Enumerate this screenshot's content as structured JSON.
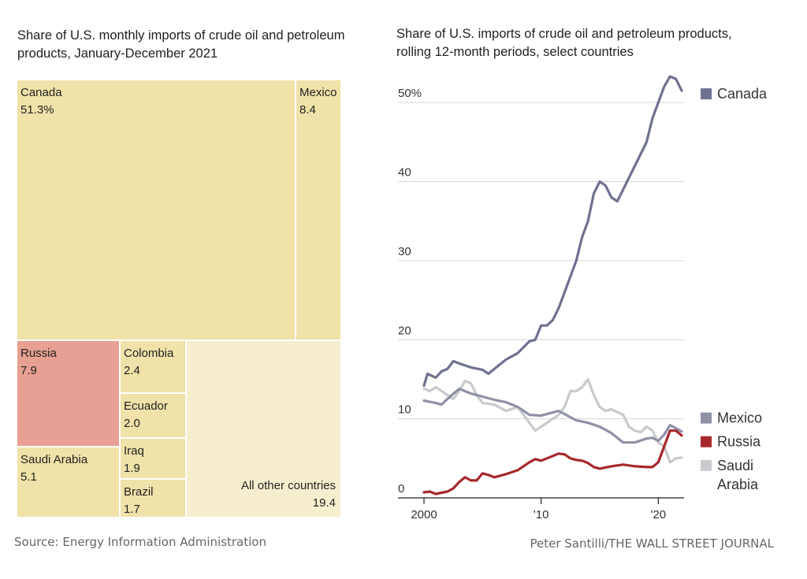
{
  "left_title": "Share of U.S. monthly imports of crude oil and petroleum products, January-December 2021",
  "right_title": "Share of U.S. imports of crude oil and petroleum products, rolling 12-month periods, select countries",
  "source": "Source: Energy Information Administration",
  "credit": "Peter Santilli/THE WALL STREET JOURNAL",
  "colors": {
    "treemap_fill": "#f0e2a9",
    "treemap_other": "#f6efcf",
    "russia_fill": "#e7a092",
    "canada_line": "#6f7190",
    "mexico_line": "#8f91a6",
    "russia_line": "#a6282b",
    "saudi_line": "#c9cace",
    "grid": "#d6d6d6"
  },
  "chart_data": [
    {
      "type": "treemap",
      "title": "Share of U.S. monthly imports of crude oil and petroleum products, January-December 2021",
      "items": [
        {
          "name": "Canada",
          "label": "51.3%",
          "value": 51.3
        },
        {
          "name": "Mexico",
          "label": "8.4",
          "value": 8.4
        },
        {
          "name": "Russia",
          "label": "7.9",
          "value": 7.9,
          "highlight": true
        },
        {
          "name": "Saudi Arabia",
          "label": "5.1",
          "value": 5.1
        },
        {
          "name": "Colombia",
          "label": "2.4",
          "value": 2.4
        },
        {
          "name": "Ecuador",
          "label": "2.0",
          "value": 2.0
        },
        {
          "name": "Iraq",
          "label": "1.9",
          "value": 1.9
        },
        {
          "name": "Brazil",
          "label": "1.7",
          "value": 1.7
        },
        {
          "name": "All other countries",
          "label": "19.4",
          "value": 19.4
        }
      ]
    },
    {
      "type": "line",
      "title": "Share of U.S. imports of crude oil and petroleum products, rolling 12-month periods, select countries",
      "xlabel": "",
      "ylabel": "",
      "xlim": [
        2000,
        2022.2
      ],
      "ylim": [
        0,
        55
      ],
      "xticks": [
        {
          "value": 2000,
          "label": "2000"
        },
        {
          "value": 2010,
          "label": "'10"
        },
        {
          "value": 2020,
          "label": "'20"
        }
      ],
      "yticks": [
        {
          "value": 0,
          "label": "0"
        },
        {
          "value": 10,
          "label": "10"
        },
        {
          "value": 20,
          "label": "20"
        },
        {
          "value": 30,
          "label": "30"
        },
        {
          "value": 40,
          "label": "40"
        },
        {
          "value": 50,
          "label": "50%"
        }
      ],
      "grid": true,
      "legend": "right",
      "series": [
        {
          "name": "Canada",
          "color": "#6f7190",
          "points": [
            [
              2000,
              14.2
            ],
            [
              2000.3,
              15.7
            ],
            [
              2001,
              15.2
            ],
            [
              2001.5,
              16
            ],
            [
              2002,
              16.3
            ],
            [
              2002.5,
              17.3
            ],
            [
              2003,
              17
            ],
            [
              2004,
              16.5
            ],
            [
              2005,
              16.2
            ],
            [
              2005.5,
              15.7
            ],
            [
              2006,
              16.3
            ],
            [
              2007,
              17.5
            ],
            [
              2008,
              18.3
            ],
            [
              2009,
              19.8
            ],
            [
              2009.5,
              20
            ],
            [
              2010,
              21.8
            ],
            [
              2010.5,
              21.8
            ],
            [
              2011,
              22.5
            ],
            [
              2011.5,
              24
            ],
            [
              2012,
              26
            ],
            [
              2012.5,
              28
            ],
            [
              2013,
              30
            ],
            [
              2013.5,
              33
            ],
            [
              2014,
              35
            ],
            [
              2014.5,
              38.5
            ],
            [
              2015,
              40
            ],
            [
              2015.5,
              39.5
            ],
            [
              2016,
              38
            ],
            [
              2016.5,
              37.5
            ],
            [
              2017,
              39
            ],
            [
              2018,
              42
            ],
            [
              2019,
              45
            ],
            [
              2019.5,
              48
            ],
            [
              2020,
              50
            ],
            [
              2020.5,
              52
            ],
            [
              2021,
              53.3
            ],
            [
              2021.5,
              53
            ],
            [
              2022,
              51.5
            ]
          ]
        },
        {
          "name": "Mexico",
          "color": "#8f91a6",
          "points": [
            [
              2000,
              12.3
            ],
            [
              2001,
              12
            ],
            [
              2001.5,
              11.8
            ],
            [
              2002,
              12.5
            ],
            [
              2003,
              13.8
            ],
            [
              2004,
              13.2
            ],
            [
              2005,
              12.8
            ],
            [
              2006,
              12.4
            ],
            [
              2007,
              12.1
            ],
            [
              2008,
              11.5
            ],
            [
              2009,
              10.5
            ],
            [
              2010,
              10.4
            ],
            [
              2011,
              10.8
            ],
            [
              2011.5,
              11
            ],
            [
              2012,
              10.6
            ],
            [
              2013,
              9.8
            ],
            [
              2014,
              9.5
            ],
            [
              2015,
              9
            ],
            [
              2016,
              8.2
            ],
            [
              2017,
              7
            ],
            [
              2018,
              7
            ],
            [
              2019,
              7.5
            ],
            [
              2019.5,
              7.6
            ],
            [
              2020,
              7.2
            ],
            [
              2020.5,
              8
            ],
            [
              2021,
              9.2
            ],
            [
              2021.5,
              8.8
            ],
            [
              2022,
              8.4
            ]
          ]
        },
        {
          "name": "Russia",
          "color": "#a6282b",
          "points": [
            [
              2000,
              0.7
            ],
            [
              2000.5,
              0.8
            ],
            [
              2001,
              0.5
            ],
            [
              2002,
              0.8
            ],
            [
              2002.5,
              1.2
            ],
            [
              2003,
              2
            ],
            [
              2003.5,
              2.6
            ],
            [
              2004,
              2.2
            ],
            [
              2004.5,
              2.2
            ],
            [
              2005,
              3.1
            ],
            [
              2005.5,
              2.9
            ],
            [
              2006,
              2.6
            ],
            [
              2007,
              3
            ],
            [
              2008,
              3.5
            ],
            [
              2009,
              4.5
            ],
            [
              2009.5,
              4.9
            ],
            [
              2010,
              4.7
            ],
            [
              2011,
              5.3
            ],
            [
              2011.5,
              5.6
            ],
            [
              2012,
              5.5
            ],
            [
              2012.5,
              5
            ],
            [
              2013,
              4.8
            ],
            [
              2013.5,
              4.7
            ],
            [
              2014,
              4.4
            ],
            [
              2014.5,
              3.9
            ],
            [
              2015,
              3.7
            ],
            [
              2016,
              4
            ],
            [
              2017,
              4.2
            ],
            [
              2018,
              4
            ],
            [
              2019,
              3.9
            ],
            [
              2019.5,
              3.9
            ],
            [
              2020,
              4.5
            ],
            [
              2020.5,
              6.5
            ],
            [
              2021,
              8.5
            ],
            [
              2021.5,
              8.5
            ],
            [
              2022,
              7.9
            ]
          ]
        },
        {
          "name": "Saudi Arabia",
          "color": "#c9cace",
          "points": [
            [
              2000,
              13.8
            ],
            [
              2000.5,
              13.5
            ],
            [
              2001,
              14
            ],
            [
              2002,
              13
            ],
            [
              2002.5,
              12.5
            ],
            [
              2003,
              13.5
            ],
            [
              2003.5,
              14.8
            ],
            [
              2004,
              14.5
            ],
            [
              2004.5,
              13
            ],
            [
              2005,
              12
            ],
            [
              2006,
              11.8
            ],
            [
              2007,
              11
            ],
            [
              2008,
              11.5
            ],
            [
              2009,
              9.5
            ],
            [
              2009.5,
              8.5
            ],
            [
              2010,
              9
            ],
            [
              2011,
              10
            ],
            [
              2011.5,
              10.5
            ],
            [
              2012,
              11.5
            ],
            [
              2012.5,
              13.5
            ],
            [
              2013,
              13.5
            ],
            [
              2013.5,
              14
            ],
            [
              2014,
              15
            ],
            [
              2014.5,
              13
            ],
            [
              2015,
              11.5
            ],
            [
              2015.5,
              11
            ],
            [
              2016,
              11.2
            ],
            [
              2017,
              10.5
            ],
            [
              2017.5,
              9
            ],
            [
              2018,
              8.5
            ],
            [
              2018.5,
              8.3
            ],
            [
              2019,
              9
            ],
            [
              2019.5,
              8.5
            ],
            [
              2020,
              7
            ],
            [
              2020.5,
              6.5
            ],
            [
              2021,
              4.5
            ],
            [
              2021.5,
              5
            ],
            [
              2022,
              5.1
            ]
          ]
        }
      ],
      "legend_entries": [
        {
          "series": "Canada",
          "lines": [
            "Canada"
          ],
          "y": 51
        },
        {
          "series": "Mexico",
          "lines": [
            "Mexico"
          ],
          "y": 10
        },
        {
          "series": "Russia",
          "lines": [
            "Russia"
          ],
          "y": 7
        },
        {
          "series": "Saudi Arabia",
          "lines": [
            "Saudi",
            "Arabia"
          ],
          "y": 4
        }
      ]
    }
  ]
}
